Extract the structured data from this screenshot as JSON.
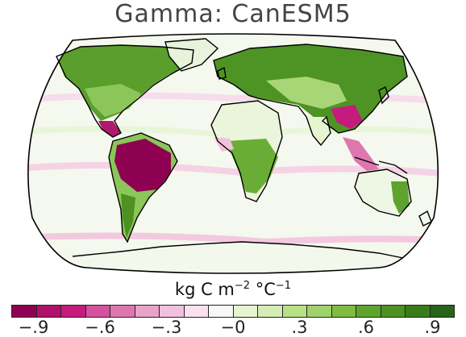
{
  "map": {
    "title": "Gamma: CanESM5",
    "projection": "Robinson (global)",
    "field": "Gamma",
    "model": "CanESM5"
  },
  "legend": {
    "units_prefix": "kg C m",
    "units_exp1": "−2",
    "units_mid": " °C",
    "units_exp2": "−1",
    "colors": [
      "#8e0152",
      "#b0126b",
      "#c51b7d",
      "#d6529f",
      "#de77ae",
      "#e9a3c9",
      "#f1c0dd",
      "#fde0ef",
      "#f7f7f7",
      "#e6f5d0",
      "#d3edb5",
      "#b8e186",
      "#a0d16c",
      "#7fbc41",
      "#5ea32e",
      "#4d9221",
      "#3a7d18",
      "#276419"
    ],
    "tick_labels": [
      "−.9",
      "−.6",
      "−.3",
      "−0",
      ".3",
      ".6",
      ".9"
    ],
    "tick_values": [
      -0.9,
      -0.6,
      -0.3,
      0,
      0.3,
      0.6,
      0.9
    ],
    "range": [
      -1.0,
      1.0
    ]
  }
}
